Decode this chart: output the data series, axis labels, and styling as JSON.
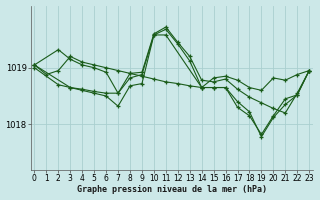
{
  "title": "Graphe pression niveau de la mer (hPa)",
  "bg_color": "#cce8e8",
  "line_color": "#1a5c1a",
  "grid_color": "#aacfcf",
  "yticks": [
    1018,
    1019
  ],
  "ylim": [
    1017.2,
    1020.1
  ],
  "xlim": [
    -0.3,
    23.3
  ],
  "xticks": [
    0,
    1,
    2,
    3,
    4,
    5,
    6,
    7,
    8,
    9,
    10,
    11,
    12,
    13,
    14,
    15,
    16,
    17,
    18,
    19,
    20,
    21,
    22,
    23
  ],
  "series": [
    {
      "x": [
        0,
        1,
        2,
        3,
        4,
        5,
        6,
        7,
        8,
        9,
        10,
        11,
        12,
        13,
        14,
        15,
        16,
        17,
        18,
        19,
        20,
        21,
        22,
        23
      ],
      "y": [
        1019.05,
        1018.88,
        1018.95,
        1019.2,
        1019.1,
        1019.05,
        1019.0,
        1018.95,
        1018.9,
        1018.85,
        1018.8,
        1018.75,
        1018.72,
        1018.68,
        1018.65,
        1018.82,
        1018.85,
        1018.78,
        1018.65,
        1018.6,
        1018.82,
        1018.78,
        1018.88,
        1018.95
      ]
    },
    {
      "x": [
        0,
        2,
        3,
        4,
        5,
        6,
        7,
        8,
        9,
        10,
        11,
        12,
        13,
        14,
        15,
        16,
        17,
        18,
        19,
        20,
        21,
        22,
        23
      ],
      "y": [
        1019.05,
        1019.32,
        1019.15,
        1019.05,
        1019.0,
        1018.92,
        1018.55,
        1018.9,
        1018.92,
        1019.6,
        1019.72,
        1019.45,
        1019.2,
        1018.78,
        1018.75,
        1018.8,
        1018.62,
        1018.48,
        1018.38,
        1018.28,
        1018.2,
        1018.55,
        1018.95
      ]
    },
    {
      "x": [
        0,
        2,
        3,
        4,
        5,
        6,
        7,
        8,
        9,
        10,
        11,
        12,
        13,
        14,
        15,
        16,
        17,
        18,
        19,
        20,
        21,
        22,
        23
      ],
      "y": [
        1019.0,
        1018.7,
        1018.65,
        1018.6,
        1018.55,
        1018.5,
        1018.32,
        1018.68,
        1018.72,
        1019.58,
        1019.68,
        1019.42,
        1019.12,
        1018.65,
        1018.65,
        1018.65,
        1018.3,
        1018.15,
        1017.82,
        1018.15,
        1018.45,
        1018.52,
        1018.95
      ]
    },
    {
      "x": [
        0,
        3,
        4,
        5,
        6,
        7,
        8,
        9,
        10,
        11,
        14,
        15,
        16,
        17,
        18,
        19,
        20,
        21,
        22,
        23
      ],
      "y": [
        1019.05,
        1018.65,
        1018.62,
        1018.58,
        1018.55,
        1018.55,
        1018.82,
        1018.88,
        1019.58,
        1019.58,
        1018.65,
        1018.65,
        1018.65,
        1018.4,
        1018.22,
        1017.78,
        1018.12,
        1018.35,
        1018.52,
        1018.95
      ]
    }
  ]
}
